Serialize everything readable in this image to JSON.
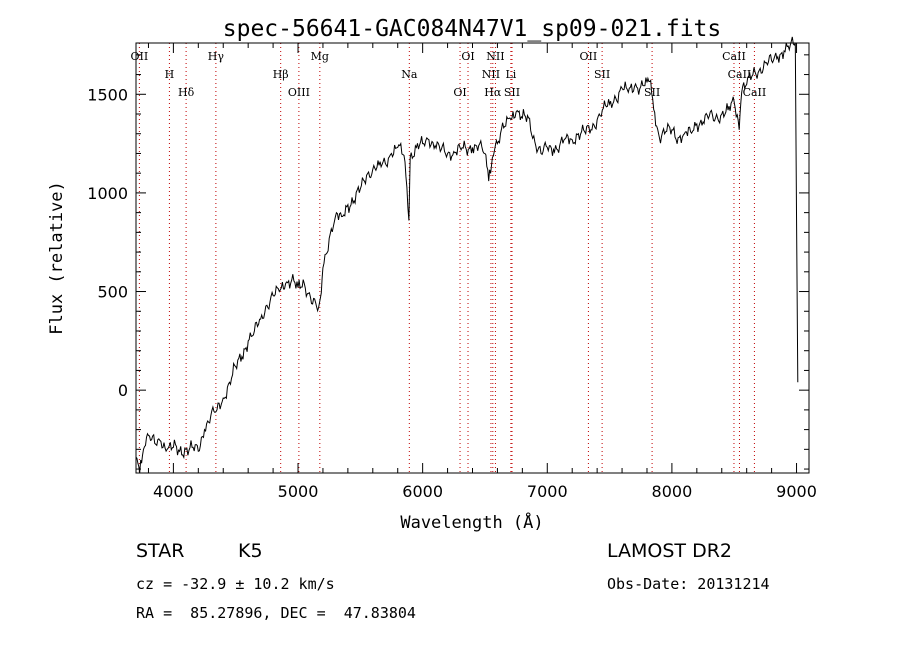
{
  "chart_data": {
    "type": "line",
    "title": "spec-56641-GAC084N47V1_sp09-021.fits",
    "xlabel": "Wavelength (Å)",
    "ylabel": "Flux (relative)",
    "xlim": [
      3700,
      9100
    ],
    "ylim": [
      -420,
      1760
    ],
    "xticks": [
      4000,
      5000,
      6000,
      7000,
      8000,
      9000
    ],
    "yticks": [
      0,
      500,
      1000,
      1500
    ],
    "grid": false,
    "series": [
      {
        "x": [
          3700,
          3730,
          3760,
          3800,
          3850,
          3900,
          3950,
          4000,
          4050,
          4100,
          4150,
          4200,
          4250,
          4300,
          4350,
          4400,
          4450,
          4500,
          4550,
          4600,
          4650,
          4700,
          4750,
          4800,
          4850,
          4900,
          4950,
          5000,
          5050,
          5100,
          5150,
          5180,
          5200,
          5250,
          5300,
          5350,
          5400,
          5450,
          5500,
          5550,
          5600,
          5650,
          5700,
          5750,
          5800,
          5850,
          5890,
          5900,
          5950,
          6000,
          6050,
          6100,
          6150,
          6200,
          6250,
          6300,
          6350,
          6400,
          6450,
          6500,
          6530,
          6560,
          6600,
          6650,
          6700,
          6750,
          6800,
          6850,
          6900,
          6950,
          7000,
          7050,
          7100,
          7150,
          7200,
          7250,
          7300,
          7350,
          7400,
          7450,
          7500,
          7550,
          7600,
          7650,
          7700,
          7750,
          7800,
          7830,
          7870,
          7900,
          7950,
          8000,
          8050,
          8100,
          8150,
          8200,
          8250,
          8300,
          8350,
          8400,
          8450,
          8500,
          8540,
          8560,
          8600,
          8650,
          8700,
          8750,
          8800,
          8850,
          8900,
          8950,
          8990,
          9000,
          9010
        ],
        "y": [
          -340,
          -420,
          -300,
          -230,
          -270,
          -260,
          -300,
          -290,
          -310,
          -300,
          -290,
          -310,
          -200,
          -130,
          -100,
          -40,
          40,
          120,
          170,
          250,
          300,
          360,
          430,
          480,
          500,
          540,
          560,
          520,
          540,
          470,
          420,
          470,
          620,
          770,
          880,
          880,
          940,
          960,
          1020,
          1090,
          1120,
          1140,
          1150,
          1200,
          1230,
          1190,
          860,
          1180,
          1230,
          1250,
          1270,
          1240,
          1220,
          1200,
          1210,
          1230,
          1220,
          1230,
          1240,
          1200,
          1060,
          1180,
          1250,
          1330,
          1380,
          1410,
          1380,
          1380,
          1260,
          1200,
          1230,
          1220,
          1240,
          1280,
          1270,
          1300,
          1310,
          1320,
          1370,
          1430,
          1450,
          1480,
          1530,
          1510,
          1540,
          1540,
          1560,
          1570,
          1340,
          1280,
          1310,
          1320,
          1280,
          1300,
          1310,
          1350,
          1360,
          1390,
          1380,
          1400,
          1420,
          1460,
          1320,
          1510,
          1550,
          1600,
          1620,
          1660,
          1670,
          1690,
          1720,
          1750,
          1760,
          900,
          40
        ]
      }
    ],
    "lines": [
      {
        "label": "OII",
        "x": 3727
      },
      {
        "label": "H",
        "x": 3968
      },
      {
        "label": "Hδ",
        "x": 4102
      },
      {
        "label": "Hγ",
        "x": 4341
      },
      {
        "label": "Hβ",
        "x": 4861
      },
      {
        "label": "OIII",
        "x": 5007
      },
      {
        "label": "Mg",
        "x": 5175
      },
      {
        "label": "Na",
        "x": 5893
      },
      {
        "label": "OI",
        "x": 6300
      },
      {
        "label": "OI",
        "x": 6364
      },
      {
        "label": "NII",
        "x": 6548
      },
      {
        "label": "Hα",
        "x": 6563
      },
      {
        "label": "NII",
        "x": 6584
      },
      {
        "label": "Li",
        "x": 6708
      },
      {
        "label": "SII",
        "x": 6717
      },
      {
        "label": "OII",
        "x": 7330
      },
      {
        "label": "SII",
        "x": 7440
      },
      {
        "label": "SII",
        "x": 7841
      },
      {
        "label": "CaII",
        "x": 8498
      },
      {
        "label": "CaII",
        "x": 8542
      },
      {
        "label": "CaII",
        "x": 8662
      }
    ]
  },
  "info": {
    "class": "STAR",
    "subclass": "K5",
    "survey": "LAMOST DR2",
    "cz": "cz = -32.9 ± 10.2 km/s",
    "obs_date": "Obs-Date: 20131214",
    "coords": "RA =  85.27896, DEC =  47.83804"
  }
}
